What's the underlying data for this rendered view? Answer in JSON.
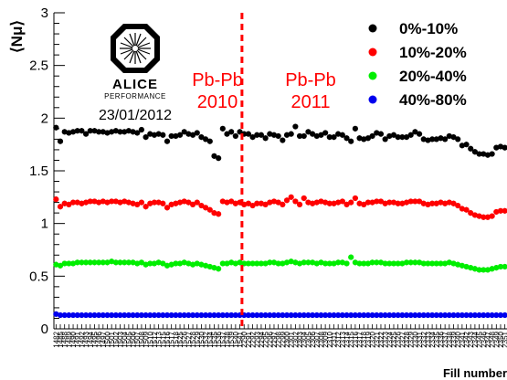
{
  "chart_data": {
    "type": "scatter",
    "title": "",
    "ylabel": "⟨Nμ⟩",
    "xlabel": "Fill number",
    "ylim": [
      0,
      3
    ],
    "y_ticks": [
      "0",
      "0.5",
      "1",
      "1.5",
      "2",
      "2.5",
      "3"
    ],
    "categories": [
      "1482",
      "1485",
      "1488",
      "1489",
      "1490",
      "1491",
      "1492",
      "1493",
      "1494",
      "1495",
      "1496",
      "1497",
      "1500",
      "1501",
      "1502",
      "1503",
      "1504",
      "1505",
      "1506",
      "1507",
      "1508",
      "1509",
      "1510",
      "1512",
      "1513",
      "1515",
      "1516",
      "1517",
      "1518",
      "1525",
      "1526",
      "1527",
      "1528",
      "1529",
      "1530",
      "1532",
      "1534",
      "1535",
      "1536",
      "1537",
      "1538",
      "1539",
      "1540",
      "1541",
      "2290",
      "2291",
      "2292",
      "2293",
      "2294",
      "2295",
      "2296",
      "2297",
      "2298",
      "2299",
      "2300",
      "2301",
      "2302",
      "2303",
      "2304",
      "2305",
      "2306",
      "2307",
      "2308",
      "2309",
      "2310",
      "2311",
      "2312",
      "2313",
      "2314",
      "2315",
      "2316",
      "2317",
      "2318",
      "2319",
      "2320",
      "2321",
      "2322",
      "2323",
      "2324",
      "2325",
      "2326",
      "2327",
      "2328",
      "2329",
      "2330",
      "2331",
      "2332",
      "2333",
      "2334",
      "2335",
      "2336",
      "2337",
      "2338",
      "2339",
      "2340",
      "2341",
      "2342",
      "2343",
      "2344",
      "2345",
      "2346",
      "2347",
      "2348",
      "2349",
      "2350",
      "2351"
    ],
    "divider_index": 43.5,
    "series": [
      {
        "name": "0%-10%",
        "color": "#000000",
        "values": [
          1.91,
          1.78,
          1.87,
          1.86,
          1.87,
          1.88,
          1.88,
          1.85,
          1.88,
          1.88,
          1.87,
          1.87,
          1.86,
          1.87,
          1.88,
          1.87,
          1.87,
          1.88,
          1.87,
          1.86,
          1.89,
          1.82,
          1.85,
          1.84,
          1.85,
          1.84,
          1.78,
          1.83,
          1.83,
          1.84,
          1.87,
          1.85,
          1.84,
          1.86,
          1.82,
          1.8,
          1.78,
          1.64,
          1.62,
          1.9,
          1.85,
          1.87,
          1.83,
          1.87,
          1.85,
          1.85,
          1.82,
          1.84,
          1.84,
          1.81,
          1.85,
          1.84,
          1.83,
          1.79,
          1.84,
          1.85,
          1.92,
          1.83,
          1.83,
          1.87,
          1.85,
          1.83,
          1.84,
          1.86,
          1.82,
          1.82,
          1.85,
          1.84,
          1.81,
          1.78,
          1.9,
          1.81,
          1.8,
          1.81,
          1.83,
          1.86,
          1.85,
          1.8,
          1.83,
          1.84,
          1.82,
          1.82,
          1.82,
          1.84,
          1.87,
          1.85,
          1.8,
          1.79,
          1.8,
          1.8,
          1.81,
          1.8,
          1.83,
          1.82,
          1.8,
          1.74,
          1.75,
          1.71,
          1.68,
          1.66,
          1.66,
          1.65,
          1.66,
          1.72,
          1.73,
          1.72
        ]
      },
      {
        "name": "10%-20%",
        "color": "#ff0000",
        "values": [
          1.23,
          1.16,
          1.19,
          1.18,
          1.2,
          1.2,
          1.19,
          1.2,
          1.21,
          1.21,
          1.2,
          1.21,
          1.2,
          1.21,
          1.21,
          1.2,
          1.21,
          1.2,
          1.19,
          1.18,
          1.2,
          1.16,
          1.19,
          1.2,
          1.2,
          1.19,
          1.15,
          1.18,
          1.19,
          1.2,
          1.21,
          1.2,
          1.18,
          1.2,
          1.17,
          1.15,
          1.13,
          1.1,
          1.09,
          1.21,
          1.2,
          1.21,
          1.19,
          1.2,
          1.18,
          1.19,
          1.17,
          1.19,
          1.19,
          1.18,
          1.2,
          1.21,
          1.2,
          1.18,
          1.22,
          1.25,
          1.21,
          1.18,
          1.24,
          1.2,
          1.19,
          1.2,
          1.21,
          1.2,
          1.19,
          1.19,
          1.2,
          1.21,
          1.18,
          1.2,
          1.24,
          1.19,
          1.18,
          1.2,
          1.2,
          1.21,
          1.21,
          1.19,
          1.2,
          1.2,
          1.19,
          1.19,
          1.2,
          1.21,
          1.21,
          1.21,
          1.19,
          1.18,
          1.19,
          1.19,
          1.2,
          1.19,
          1.2,
          1.19,
          1.17,
          1.14,
          1.13,
          1.1,
          1.08,
          1.07,
          1.06,
          1.06,
          1.07,
          1.11,
          1.12,
          1.12
        ]
      },
      {
        "name": "20%-40%",
        "color": "#00ee00",
        "values": [
          0.61,
          0.6,
          0.62,
          0.62,
          0.62,
          0.63,
          0.63,
          0.63,
          0.63,
          0.63,
          0.63,
          0.63,
          0.63,
          0.64,
          0.63,
          0.63,
          0.63,
          0.63,
          0.63,
          0.62,
          0.63,
          0.61,
          0.62,
          0.62,
          0.63,
          0.62,
          0.6,
          0.61,
          0.62,
          0.62,
          0.63,
          0.62,
          0.61,
          0.62,
          0.61,
          0.6,
          0.59,
          0.58,
          0.57,
          0.62,
          0.62,
          0.63,
          0.62,
          0.63,
          0.62,
          0.62,
          0.62,
          0.62,
          0.62,
          0.62,
          0.63,
          0.63,
          0.62,
          0.62,
          0.63,
          0.64,
          0.63,
          0.62,
          0.63,
          0.63,
          0.63,
          0.62,
          0.63,
          0.62,
          0.62,
          0.62,
          0.63,
          0.63,
          0.62,
          0.68,
          0.63,
          0.62,
          0.62,
          0.62,
          0.63,
          0.63,
          0.63,
          0.62,
          0.62,
          0.62,
          0.62,
          0.62,
          0.63,
          0.63,
          0.63,
          0.63,
          0.62,
          0.62,
          0.62,
          0.62,
          0.62,
          0.62,
          0.63,
          0.62,
          0.61,
          0.6,
          0.59,
          0.58,
          0.57,
          0.56,
          0.56,
          0.56,
          0.57,
          0.58,
          0.59,
          0.59
        ]
      },
      {
        "name": "40%-80%",
        "color": "#0000ee",
        "values": [
          0.14,
          0.13,
          0.13,
          0.13,
          0.13,
          0.13,
          0.13,
          0.13,
          0.13,
          0.13,
          0.13,
          0.13,
          0.13,
          0.13,
          0.13,
          0.13,
          0.13,
          0.13,
          0.13,
          0.13,
          0.13,
          0.13,
          0.13,
          0.13,
          0.13,
          0.13,
          0.13,
          0.13,
          0.13,
          0.13,
          0.13,
          0.13,
          0.13,
          0.13,
          0.13,
          0.13,
          0.13,
          0.13,
          0.13,
          0.13,
          0.13,
          0.13,
          0.13,
          0.13,
          0.13,
          0.13,
          0.13,
          0.13,
          0.13,
          0.13,
          0.13,
          0.13,
          0.13,
          0.13,
          0.13,
          0.13,
          0.13,
          0.13,
          0.13,
          0.13,
          0.13,
          0.13,
          0.13,
          0.13,
          0.13,
          0.13,
          0.13,
          0.13,
          0.13,
          0.13,
          0.13,
          0.13,
          0.13,
          0.13,
          0.13,
          0.13,
          0.13,
          0.13,
          0.13,
          0.13,
          0.13,
          0.13,
          0.13,
          0.13,
          0.13,
          0.13,
          0.13,
          0.13,
          0.13,
          0.13,
          0.13,
          0.13,
          0.13,
          0.13,
          0.13,
          0.13,
          0.13,
          0.13,
          0.13,
          0.13,
          0.13,
          0.13,
          0.13,
          0.13,
          0.13,
          0.13
        ]
      }
    ],
    "period_labels": [
      {
        "line1": "Pb-Pb",
        "line2": "2010"
      },
      {
        "line1": "Pb-Pb",
        "line2": "2011"
      }
    ],
    "legend_position": "top-right",
    "grid": false
  },
  "logo": {
    "name": "ALICE",
    "subtitle": "PERFORMANCE",
    "date": "23/01/2012"
  }
}
